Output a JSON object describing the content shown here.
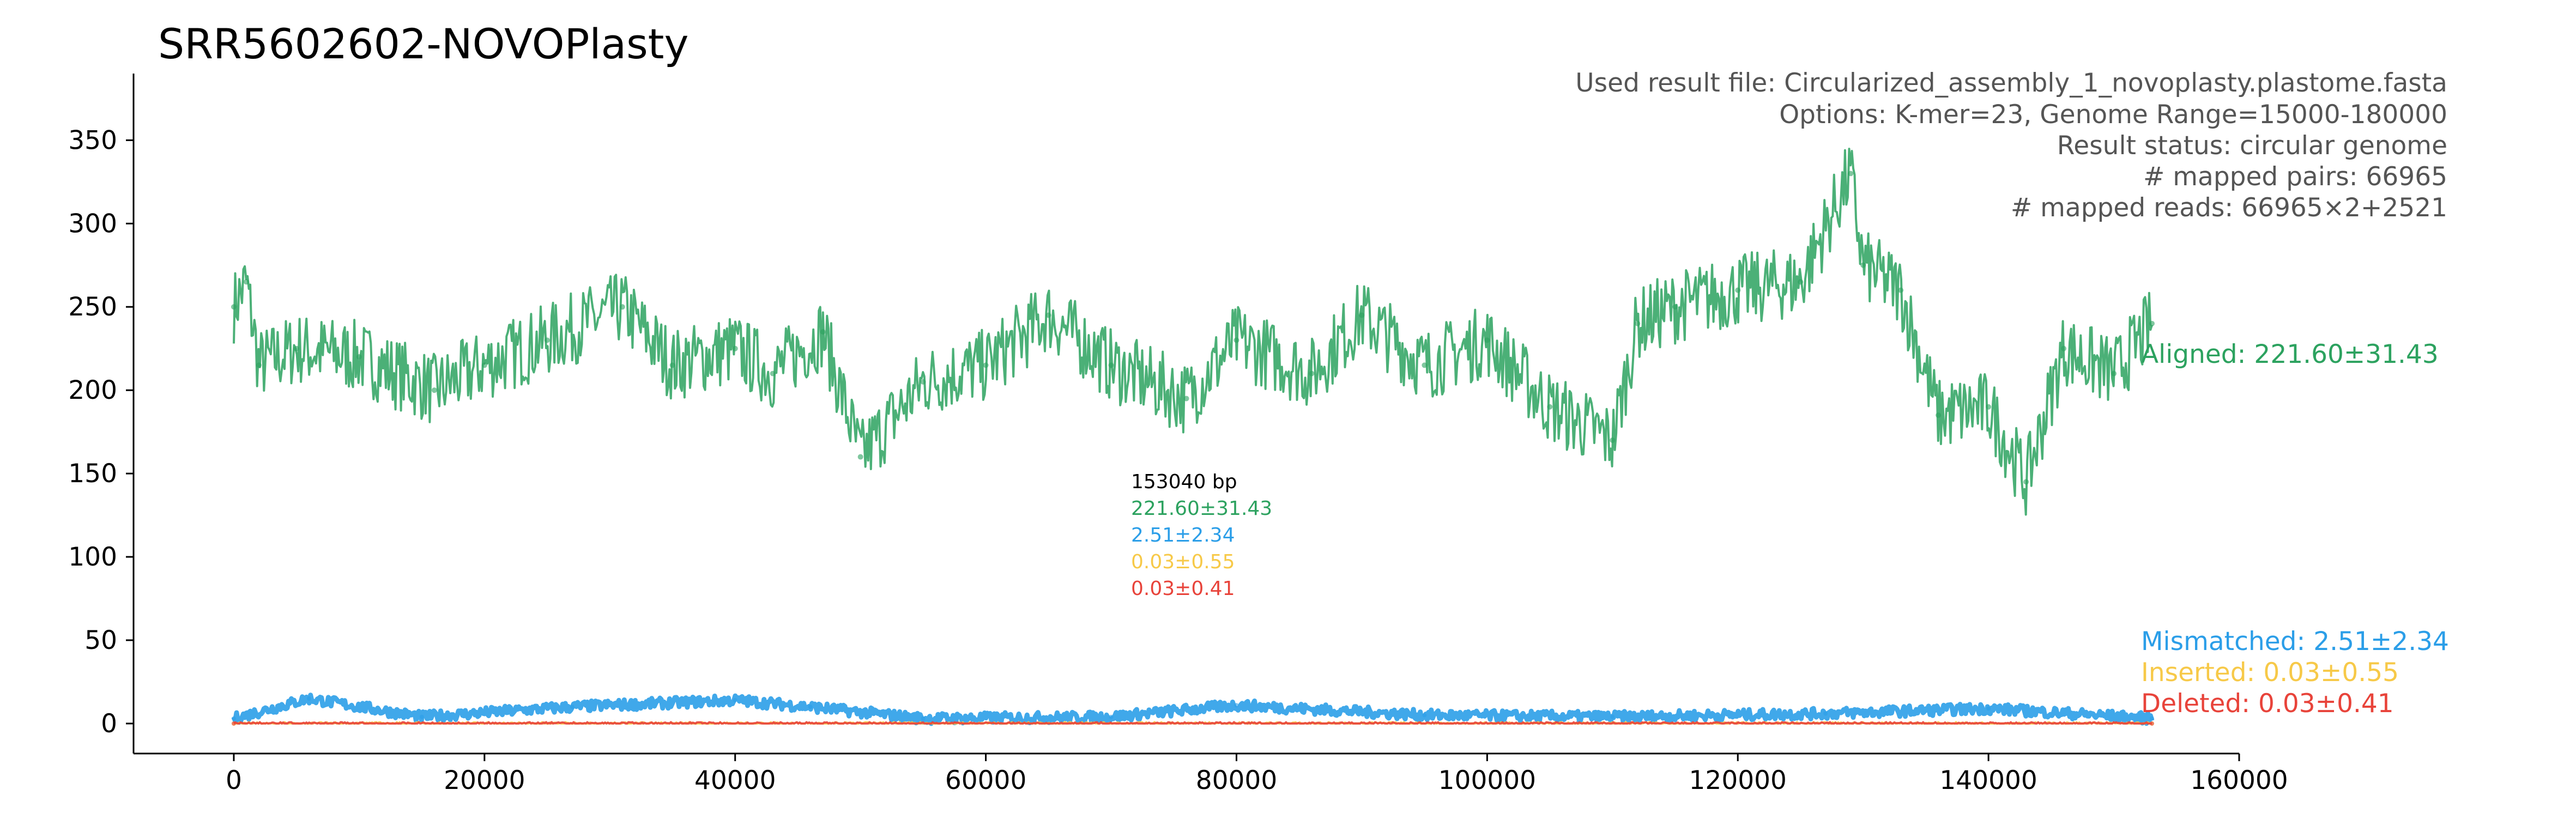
{
  "title": "SRR5602602-NOVOPlasty",
  "info_lines": [
    "Used result file: Circularized_assembly_1_novoplasty.plastome.fasta",
    "Options: K-mer=23, Genome Range=15000-180000",
    "Result status: circular genome",
    "# mapped pairs: 66965",
    "# mapped reads: 66965×2+2521"
  ],
  "center_stats": {
    "length": "153040 bp",
    "aligned": "221.60±31.43",
    "mismatched": "2.51±2.34",
    "inserted": "0.03±0.55",
    "deleted": "0.03±0.41"
  },
  "colors": {
    "aligned": "#2ca25f",
    "mismatched": "#2b9ee8",
    "inserted": "#f7c948",
    "deleted": "#e8433a",
    "info_text": "#555555",
    "axis": "#000000"
  },
  "chart_data": {
    "type": "scatter",
    "xlim": [
      -8000,
      160000
    ],
    "ylim": [
      -18,
      390
    ],
    "x_ticks": [
      0,
      20000,
      40000,
      60000,
      80000,
      100000,
      120000,
      140000,
      160000
    ],
    "y_ticks": [
      0,
      50,
      100,
      150,
      200,
      250,
      300,
      350
    ],
    "grid": false,
    "series": [
      {
        "name": "Aligned: 221.60±31.43",
        "key": "aligned",
        "x": [
          0,
          1000,
          2000,
          5000,
          10000,
          16000,
          20000,
          25000,
          31000,
          35000,
          40000,
          43000,
          47000,
          50000,
          55000,
          60000,
          65000,
          70000,
          76000,
          80000,
          86000,
          90000,
          95000,
          100000,
          105000,
          110000,
          112000,
          115000,
          120000,
          125000,
          129000,
          130000,
          133000,
          136000,
          140000,
          143000,
          146000,
          150000,
          153040
        ],
        "y": [
          250,
          265,
          215,
          225,
          220,
          200,
          215,
          230,
          250,
          215,
          225,
          210,
          235,
          160,
          205,
          215,
          245,
          215,
          195,
          230,
          210,
          245,
          215,
          230,
          190,
          170,
          240,
          250,
          260,
          265,
          330,
          275,
          260,
          185,
          190,
          145,
          225,
          210,
          240
        ]
      },
      {
        "name": "Mismatched: 2.51±2.34",
        "key": "mismatched",
        "x": [
          0,
          6000,
          15000,
          27000,
          40000,
          46000,
          55000,
          70000,
          80000,
          95000,
          110000,
          127000,
          140000,
          153040
        ],
        "y": [
          3,
          15,
          4,
          10,
          14,
          10,
          3,
          4,
          11,
          5,
          4,
          6,
          9,
          3
        ]
      },
      {
        "name": "Inserted: 0.03±0.55",
        "key": "inserted",
        "x": [
          0,
          153040
        ],
        "y": [
          0,
          0
        ]
      },
      {
        "name": "Deleted: 0.03±0.41",
        "key": "deleted",
        "x": [
          0,
          153040
        ],
        "y": [
          0,
          0
        ]
      }
    ]
  }
}
